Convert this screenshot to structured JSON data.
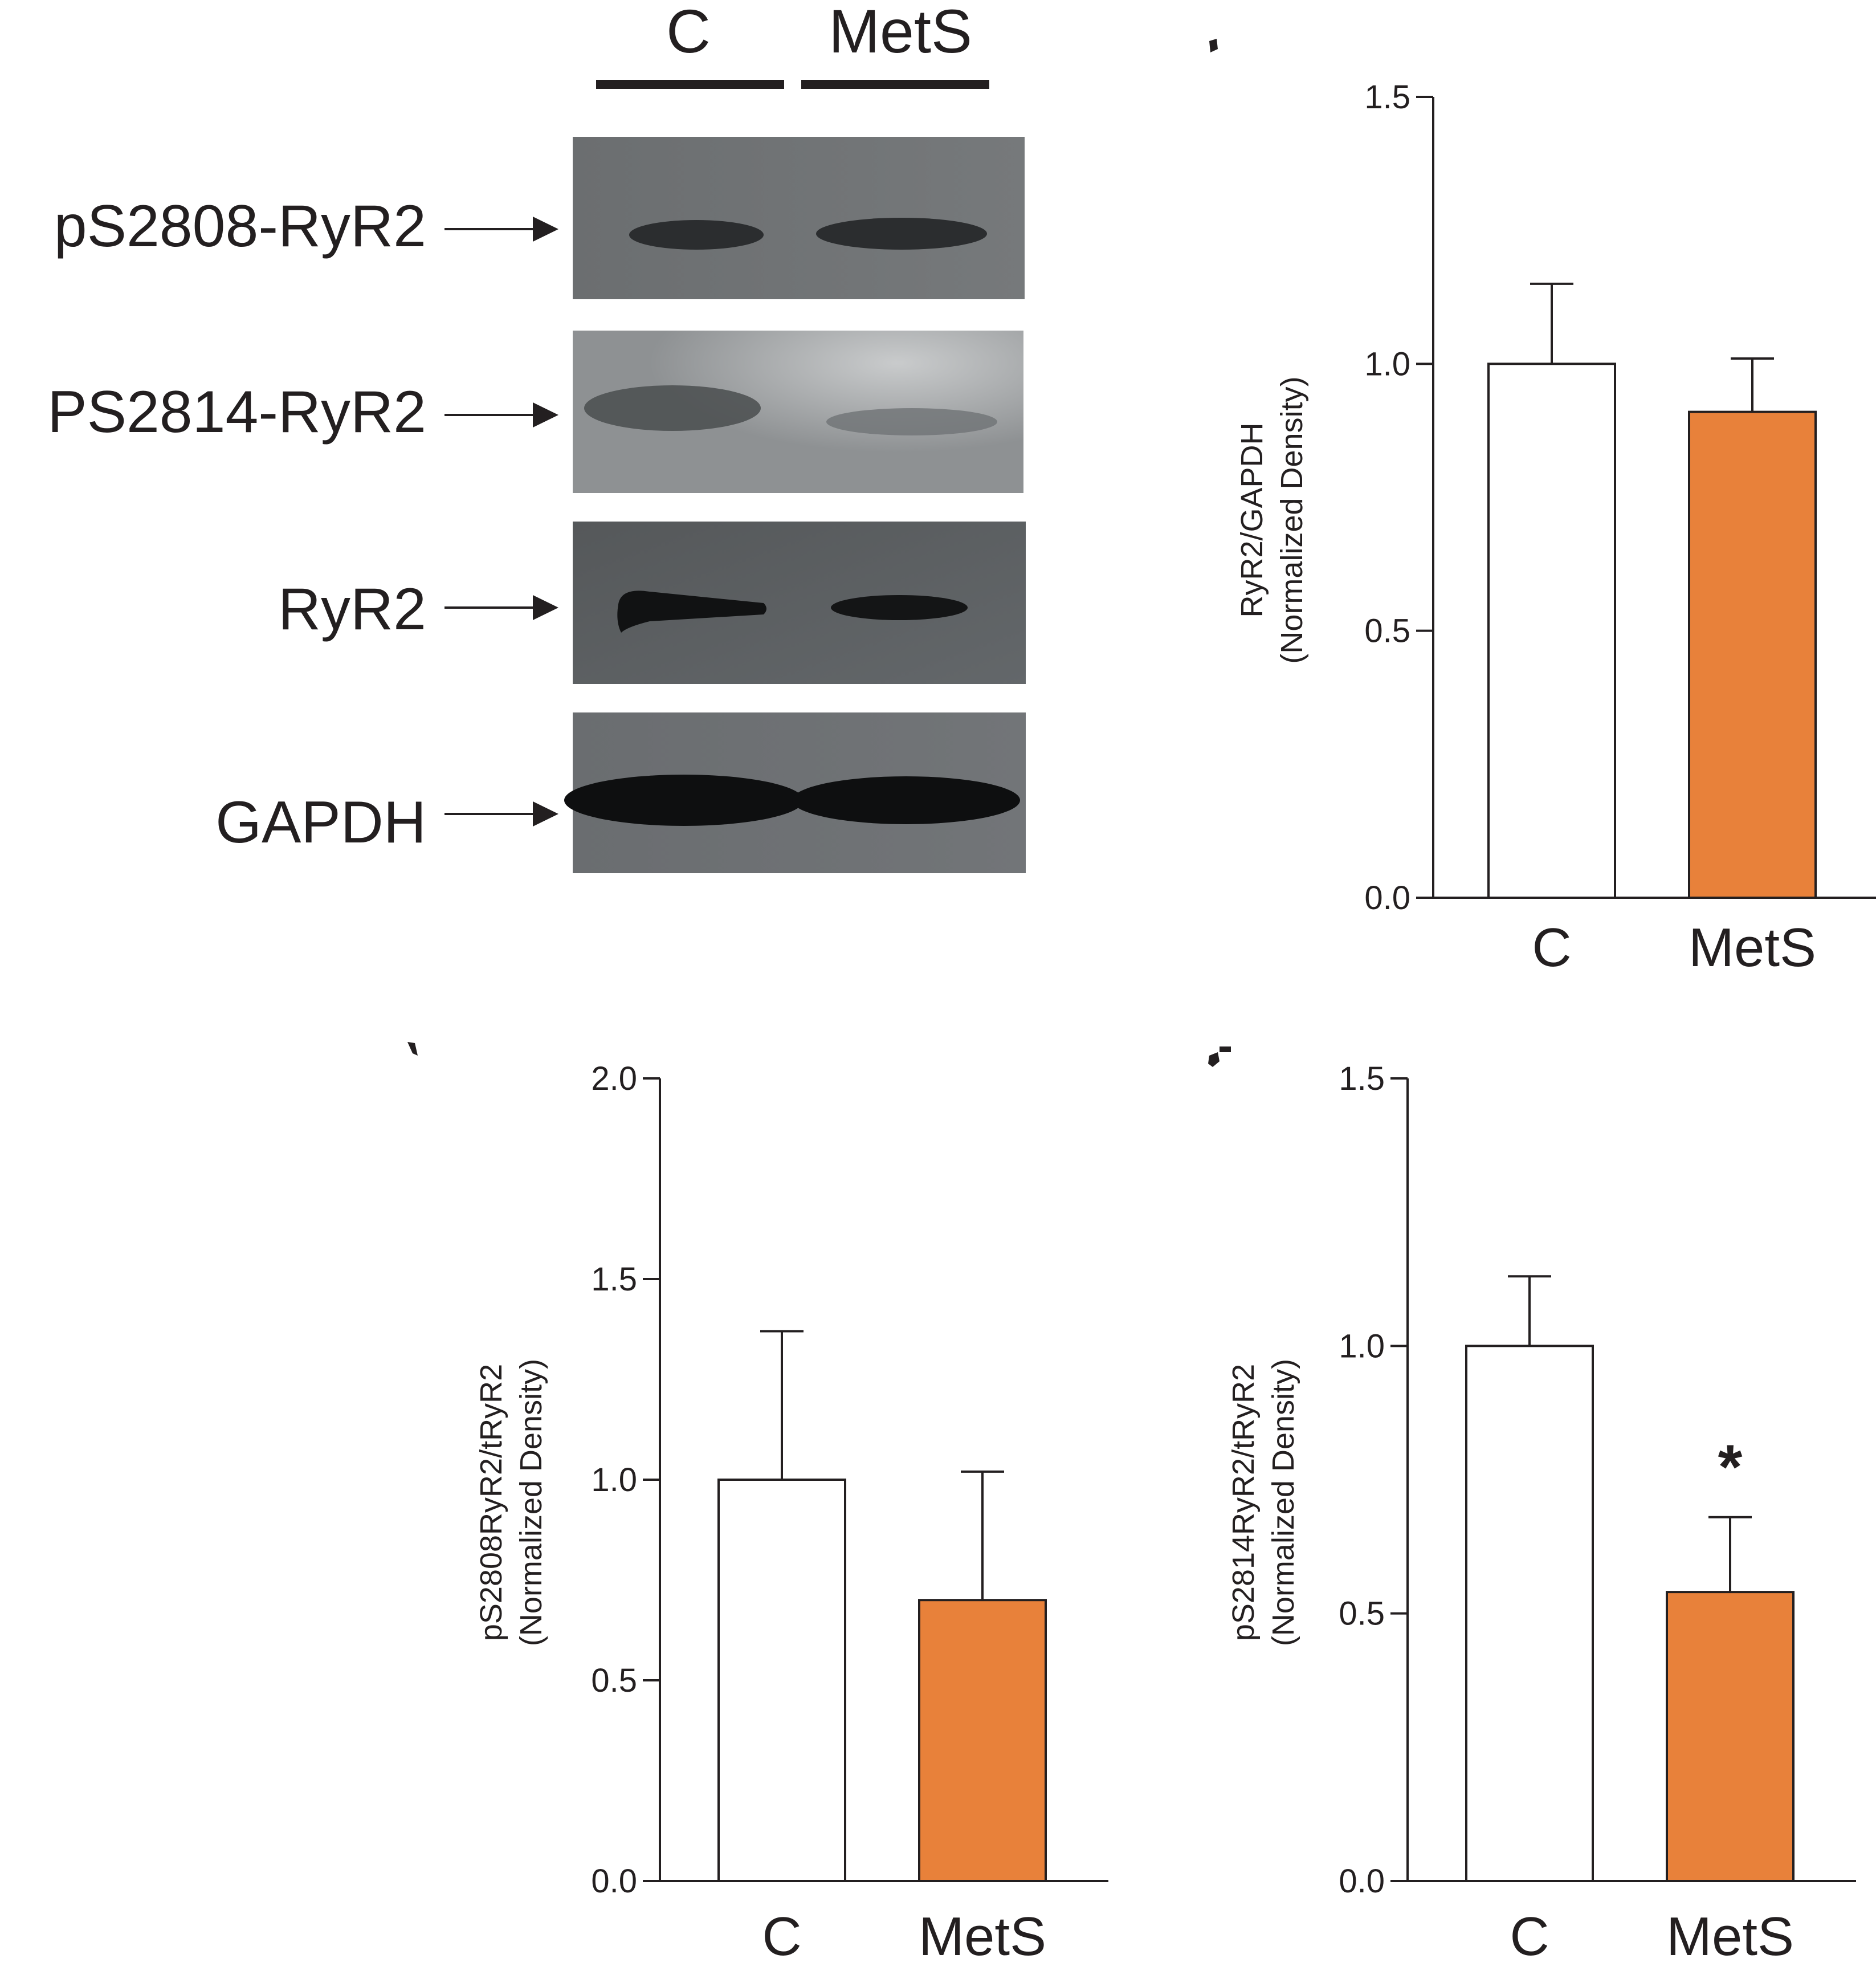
{
  "western_blot": {
    "lane_labels": [
      "C",
      "MetS"
    ],
    "rows": [
      {
        "label": "pS2808-RyR2"
      },
      {
        "label": "PS2814-RyR2"
      },
      {
        "label": "RyR2"
      },
      {
        "label": "GAPDH"
      }
    ]
  },
  "colors": {
    "control_fill": "#ffffff",
    "mets_fill": "#e8813a",
    "ink": "#231f20"
  },
  "chart_data": [
    {
      "type": "bar",
      "categories": [
        "C",
        "MetS"
      ],
      "values": [
        1.0,
        0.91
      ],
      "errors": [
        0.15,
        0.1
      ],
      "ylabel_lines": [
        "RyR2/GAPDH",
        "(Normalized Density)"
      ],
      "ylim": [
        0,
        1.5
      ],
      "yticks": [
        "0.0",
        "0.5",
        "1.0",
        "1.5"
      ],
      "significance": [
        "",
        ""
      ]
    },
    {
      "type": "bar",
      "categories": [
        "C",
        "MetS"
      ],
      "values": [
        1.0,
        0.7
      ],
      "errors": [
        0.37,
        0.32
      ],
      "ylabel_lines": [
        "pS2808RyR2/tRyR2",
        "(Normalized Density)"
      ],
      "ylim": [
        0,
        2.0
      ],
      "yticks": [
        "0.0",
        "0.5",
        "1.0",
        "1.5",
        "2.0"
      ],
      "significance": [
        "",
        ""
      ]
    },
    {
      "type": "bar",
      "categories": [
        "C",
        "MetS"
      ],
      "values": [
        1.0,
        0.54
      ],
      "errors": [
        0.13,
        0.14
      ],
      "ylabel_lines": [
        "pS2814RyR2/tRyR2",
        "(Normalized Density)"
      ],
      "ylim": [
        0,
        1.5
      ],
      "yticks": [
        "0.0",
        "0.5",
        "1.0",
        "1.5"
      ],
      "significance": [
        "",
        "*"
      ]
    }
  ]
}
